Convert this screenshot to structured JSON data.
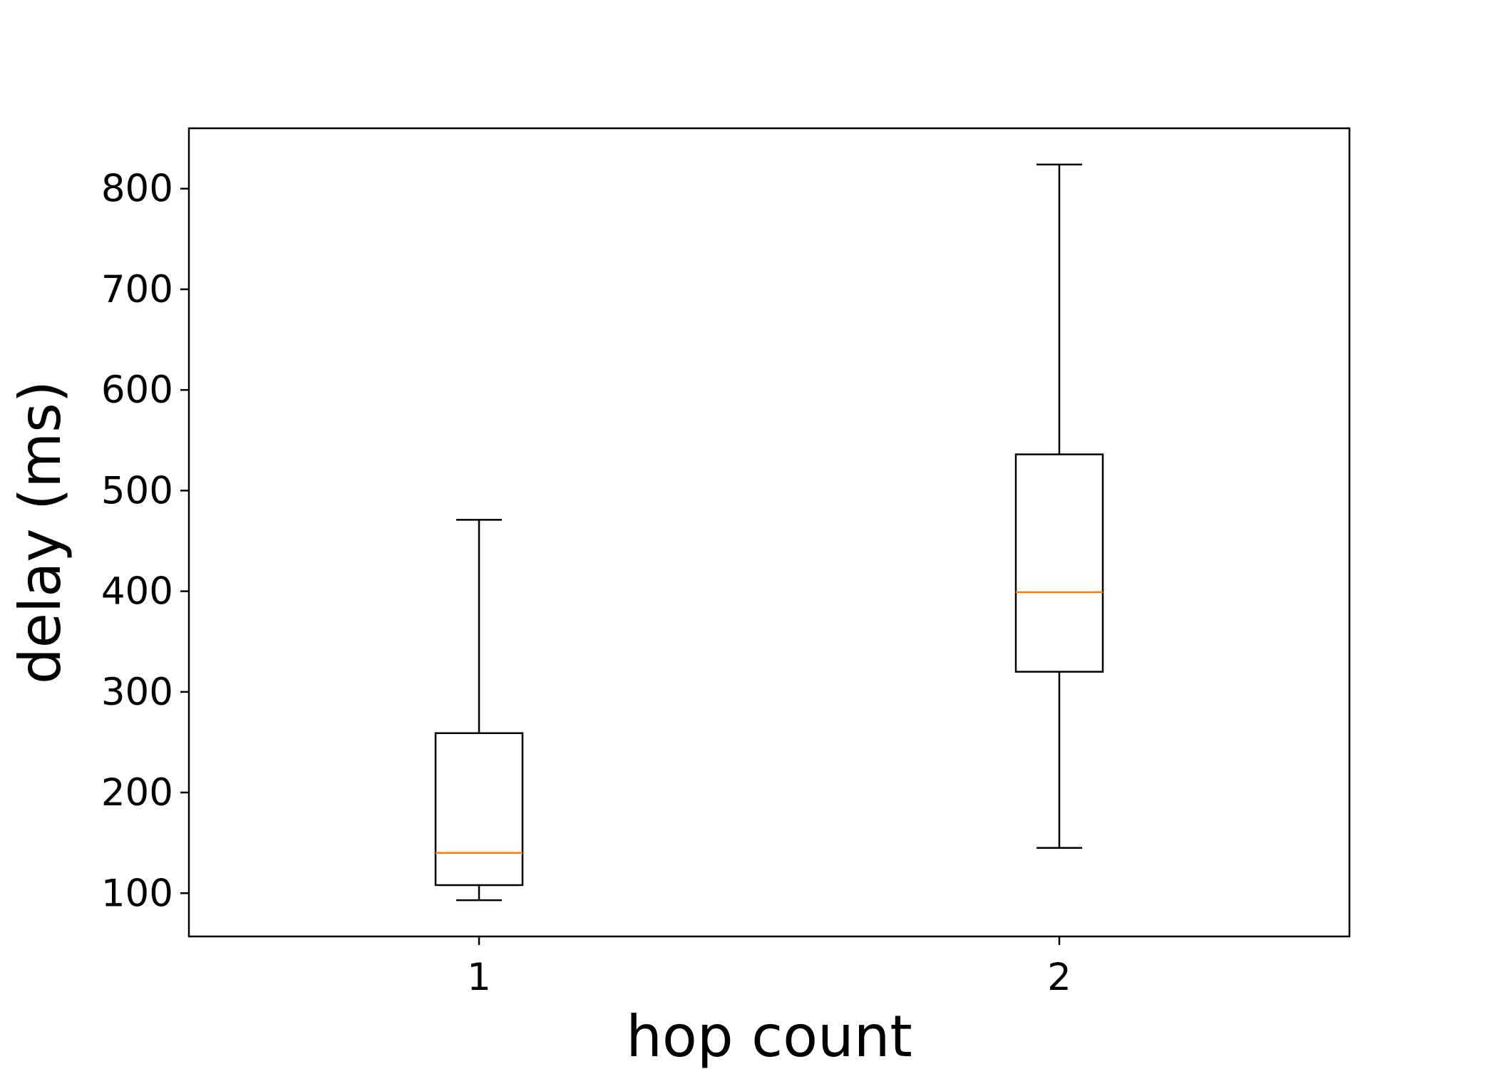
{
  "chart_data": {
    "type": "box",
    "title": "",
    "xlabel": "hop count",
    "ylabel": "delay (ms)",
    "categories": [
      "1",
      "2"
    ],
    "boxes": [
      {
        "category": "1",
        "whisker_low": 93,
        "q1": 108,
        "median": 140,
        "q3": 259,
        "whisker_high": 471
      },
      {
        "category": "2",
        "whisker_low": 145,
        "q1": 320,
        "median": 399,
        "q3": 536,
        "whisker_high": 824
      }
    ],
    "yticks": [
      100,
      200,
      300,
      400,
      500,
      600,
      700,
      800
    ],
    "ylim": [
      57,
      860
    ],
    "grid": false,
    "colors": {
      "box": "#000000",
      "median": "#ff7f0e"
    }
  }
}
